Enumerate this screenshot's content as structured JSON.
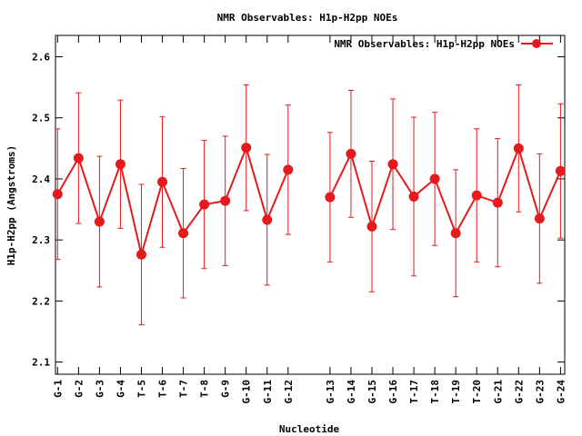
{
  "chart_data": {
    "type": "line",
    "title": "NMR Observables: H1p-H2pp NOEs",
    "xlabel": "Nucleotide",
    "ylabel": "H1p-H2pp (Angstroms)",
    "legend": {
      "label": "NMR Observables: H1p-H2pp NOEs",
      "position": "top-right"
    },
    "ylim": [
      2.08,
      2.635
    ],
    "yticks": [
      2.1,
      2.2,
      2.3,
      2.4,
      2.5,
      2.6
    ],
    "ytick_labels": [
      "2.1",
      "2.2",
      "2.3",
      "2.4",
      "2.5",
      "2.6"
    ],
    "xlim": [
      0.9,
      25.2
    ],
    "color": "#e41a1c",
    "grid": false,
    "segments": [
      {
        "categories": [
          "G-1",
          "G-2",
          "G-3",
          "G-4",
          "T-5",
          "T-6",
          "T-7",
          "T-8",
          "G-9",
          "G-10",
          "G-11",
          "G-12"
        ],
        "x": [
          1,
          2,
          3,
          4,
          5,
          6,
          7,
          8,
          9,
          10,
          11,
          12
        ],
        "y": [
          2.375,
          2.434,
          2.33,
          2.424,
          2.276,
          2.395,
          2.311,
          2.358,
          2.364,
          2.451,
          2.333,
          2.415
        ],
        "error": [
          0.107,
          0.107,
          0.107,
          0.105,
          0.115,
          0.107,
          0.106,
          0.105,
          0.106,
          0.103,
          0.107,
          0.106
        ]
      },
      {
        "categories": [
          "G-13",
          "G-14",
          "G-15",
          "G-16",
          "T-17",
          "T-18",
          "T-19",
          "T-20",
          "G-21",
          "G-22",
          "G-23",
          "G-24"
        ],
        "x": [
          14,
          15,
          16,
          17,
          18,
          19,
          20,
          21,
          22,
          23,
          24,
          25
        ],
        "y": [
          2.37,
          2.441,
          2.322,
          2.424,
          2.371,
          2.4,
          2.311,
          2.373,
          2.361,
          2.45,
          2.335,
          2.413
        ],
        "error": [
          0.106,
          0.104,
          0.107,
          0.107,
          0.13,
          0.109,
          0.104,
          0.109,
          0.105,
          0.104,
          0.106,
          0.11
        ]
      }
    ]
  }
}
